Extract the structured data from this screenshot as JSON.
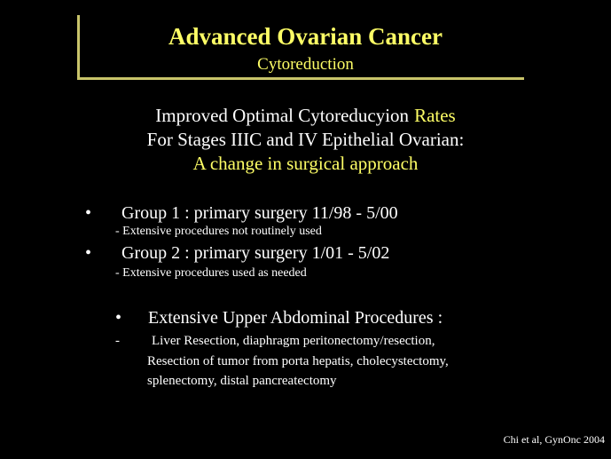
{
  "slide": {
    "title": "Advanced Ovarian Cancer",
    "subtitle": "Cytoreduction",
    "heading": {
      "line1": [
        "Improved Optimal Cytoreducyion",
        "Rates"
      ],
      "line2": "For Stages IIIC and IV Epithelial Ovarian:",
      "line3": "A change in surgical approach"
    },
    "groups": [
      {
        "marker": "•",
        "text": "Group 1 : primary surgery 11/98 - 5/00",
        "note": "- Extensive procedures not routinely used"
      },
      {
        "marker": "•",
        "text": "Group 2 : primary surgery 1/01 - 5/02",
        "note": "- Extensive procedures used as needed"
      }
    ],
    "procedures": {
      "marker": "•",
      "text": "Extensive Upper Abdominal Procedures :",
      "sub_marker": "-",
      "lines": [
        "Liver Resection, diaphragm peritonectomy/resection,",
        "Resection of tumor from porta hepatis, cholecystectomy,",
        "splenectomy, distal pancreatectomy"
      ]
    },
    "citation": "Chi et al, GynOnc 2004"
  }
}
